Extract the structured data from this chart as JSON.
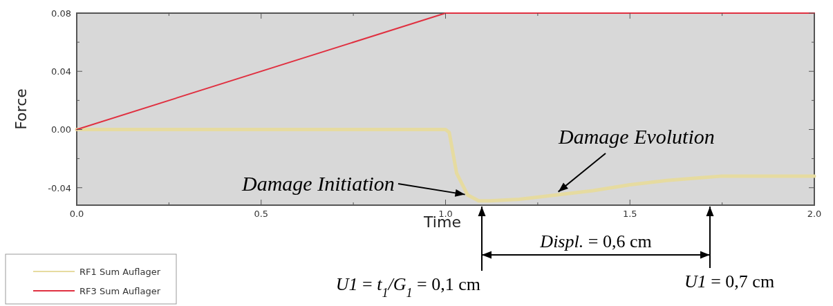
{
  "chart_data": {
    "type": "line",
    "xlabel": "Time",
    "ylabel": "Force",
    "xlim": [
      0,
      2
    ],
    "ylim": [
      -0.052,
      0.08
    ],
    "xticks": [
      {
        "value": 0,
        "label": "0.0"
      },
      {
        "value": 0.25,
        "label": null
      },
      0.5,
      {
        "value": 0.75,
        "label": null
      },
      {
        "value": 1,
        "label": "1.0"
      },
      {
        "value": 1.25,
        "label": null
      },
      1.5,
      {
        "value": 1.75,
        "label": null
      },
      {
        "value": 2,
        "label": "2.0"
      }
    ],
    "yticks": [
      {
        "value": -0.04,
        "label": "-0.04"
      },
      {
        "value": -0.02,
        "label": null
      },
      {
        "value": 0,
        "label": "0.00"
      },
      {
        "value": 0.02,
        "label": null
      },
      0.04,
      {
        "value": 0.06,
        "label": null
      },
      0.08
    ],
    "grid": false,
    "legend": "bottom left",
    "line_style": "solid",
    "marker": "none",
    "series": [
      {
        "name": "RF1 Sum Auflager",
        "color": "#e6dba0",
        "x": [
          0,
          1.0,
          1.01,
          1.03,
          1.06,
          1.09,
          1.12,
          1.2,
          1.3,
          1.4,
          1.5,
          1.6,
          1.7,
          1.75,
          2.0
        ],
        "values": [
          0,
          0,
          -0.002,
          -0.03,
          -0.045,
          -0.049,
          -0.049,
          -0.048,
          -0.045,
          -0.042,
          -0.038,
          -0.035,
          -0.033,
          -0.032,
          -0.032
        ]
      },
      {
        "name": "RF3 Sum Auflager",
        "color": "#e03040",
        "x": [
          0,
          1,
          2
        ],
        "values": [
          0,
          0.08,
          0.08
        ]
      }
    ],
    "annotations": [
      {
        "text": "Damage Initiation",
        "x": 1.06,
        "y": -0.045
      },
      {
        "text": "Damage Evolution",
        "x": 1.3,
        "y": -0.044
      },
      "Displ. = 0,6 cm",
      "U1 = t$_{1}$/G$_{1}$ = 0,1 cm",
      "U1 = 0,7 cm"
    ]
  }
}
